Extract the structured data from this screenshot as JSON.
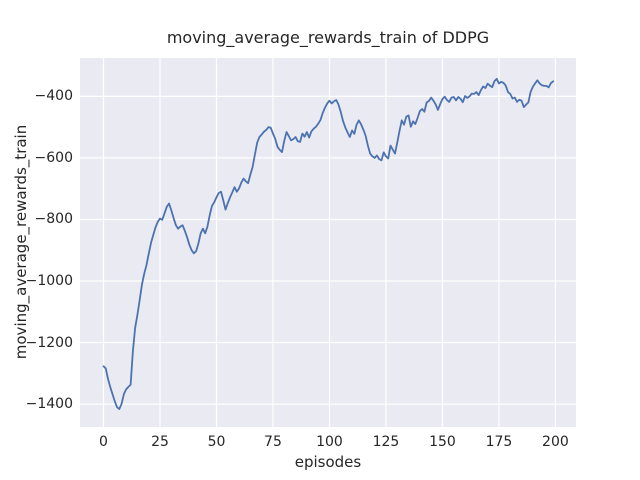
{
  "chart_data": {
    "type": "line",
    "title": "moving_average_rewards_train of DDPG",
    "xlabel": "episodes",
    "ylabel": "moving_average_rewards_train",
    "grid": true,
    "legend": false,
    "xlim": [
      -10.4,
      209.1
    ],
    "ylim": [
      -1474.3,
      -275.4
    ],
    "x_ticks": [
      0,
      25,
      50,
      75,
      100,
      125,
      150,
      175,
      200
    ],
    "x_tick_labels": [
      "0",
      "25",
      "50",
      "75",
      "100",
      "125",
      "150",
      "175",
      "200"
    ],
    "y_ticks": [
      -400,
      -600,
      -800,
      -1000,
      -1200,
      -1400
    ],
    "y_tick_labels": [
      "−400",
      "−600",
      "−800",
      "−1000",
      "−1200",
      "−1400"
    ],
    "colors": {
      "figure_background": "#ffffff",
      "axes_background": "#eaeaf2",
      "gridline": "#ffffff",
      "line": "#4c72b0",
      "text": "#262626"
    },
    "series": [
      {
        "name": "moving_average_rewards_train",
        "x_start": 0,
        "x_step": 1,
        "values": [
          -1277,
          -1284,
          -1318,
          -1345,
          -1368,
          -1391,
          -1410,
          -1416,
          -1399,
          -1368,
          -1352,
          -1344,
          -1337,
          -1228,
          -1152,
          -1110,
          -1062,
          -1012,
          -977,
          -949,
          -912,
          -877,
          -851,
          -826,
          -808,
          -797,
          -801,
          -780,
          -759,
          -748,
          -770,
          -795,
          -818,
          -830,
          -823,
          -819,
          -837,
          -858,
          -882,
          -900,
          -910,
          -903,
          -878,
          -845,
          -830,
          -845,
          -823,
          -786,
          -756,
          -744,
          -728,
          -714,
          -710,
          -738,
          -768,
          -747,
          -728,
          -712,
          -695,
          -710,
          -699,
          -680,
          -667,
          -676,
          -682,
          -654,
          -629,
          -589,
          -551,
          -532,
          -524,
          -515,
          -509,
          -500,
          -502,
          -521,
          -538,
          -564,
          -574,
          -581,
          -544,
          -516,
          -529,
          -543,
          -539,
          -532,
          -546,
          -548,
          -521,
          -531,
          -516,
          -534,
          -514,
          -505,
          -499,
          -489,
          -477,
          -454,
          -437,
          -423,
          -414,
          -423,
          -416,
          -412,
          -427,
          -451,
          -480,
          -501,
          -517,
          -532,
          -511,
          -522,
          -492,
          -478,
          -491,
          -508,
          -528,
          -560,
          -586,
          -595,
          -600,
          -592,
          -604,
          -608,
          -582,
          -595,
          -602,
          -560,
          -573,
          -586,
          -550,
          -512,
          -478,
          -492,
          -466,
          -462,
          -499,
          -481,
          -490,
          -470,
          -448,
          -441,
          -450,
          -420,
          -415,
          -404,
          -414,
          -426,
          -444,
          -425,
          -409,
          -401,
          -412,
          -418,
          -404,
          -402,
          -413,
          -402,
          -408,
          -419,
          -399,
          -405,
          -400,
          -391,
          -392,
          -386,
          -396,
          -380,
          -368,
          -373,
          -359,
          -365,
          -370,
          -351,
          -343,
          -358,
          -353,
          -356,
          -365,
          -386,
          -392,
          -407,
          -404,
          -418,
          -411,
          -414,
          -435,
          -427,
          -420,
          -386,
          -369,
          -358,
          -348,
          -358,
          -364,
          -366,
          -366,
          -371,
          -357,
          -351
        ]
      }
    ]
  }
}
